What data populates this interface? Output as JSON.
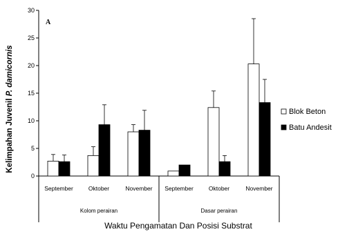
{
  "chart_data": {
    "type": "bar",
    "panel_label": "A",
    "ylabel_prefix": "Kelimpahan Juvenil ",
    "ylabel_italic": "P. damicornis",
    "xlabel": "Waktu Pengamatan Dan Posisi Substrat",
    "ylim": [
      0,
      30
    ],
    "yticks": [
      0,
      5,
      10,
      15,
      20,
      25,
      30
    ],
    "groups": [
      {
        "label": "Kolom perairan",
        "categories": [
          "September",
          "Oktober",
          "November"
        ]
      },
      {
        "label": "Dasar perairan",
        "categories": [
          "September",
          "Oktober",
          "November"
        ]
      }
    ],
    "series": [
      {
        "name": "Blok Beton",
        "color": "#ffffff",
        "values": [
          2.7,
          3.7,
          8.0,
          0.9,
          12.4,
          20.3
        ],
        "errors": [
          1.2,
          1.6,
          1.3,
          0,
          3.0,
          8.2
        ]
      },
      {
        "name": "Batu Andesit",
        "color": "#000000",
        "values": [
          2.6,
          9.3,
          8.3,
          2.0,
          2.6,
          13.3
        ],
        "errors": [
          1.2,
          3.6,
          3.6,
          0,
          1.1,
          4.2
        ]
      }
    ],
    "legend_position": "right",
    "grid": false
  }
}
